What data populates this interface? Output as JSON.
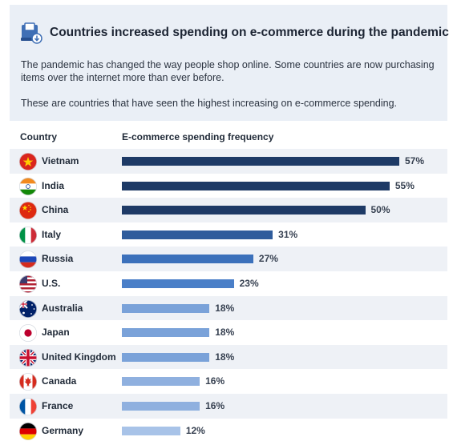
{
  "header": {
    "icon": "shopping-cart-icon",
    "title": "Countries increased spending on e-commerce during the pandemic",
    "description_1": "The pandemic has changed the way people shop online. Some countries are now purchasing items over the internet more than ever before.",
    "description_2": "These are countries that have seen the highest increasing on e-commerce spending."
  },
  "chart_data": {
    "type": "bar",
    "orientation": "horizontal",
    "column_headers": [
      "Country",
      "E-commerce spending frequency"
    ],
    "categories": [
      "Vietnam",
      "India",
      "China",
      "Italy",
      "Russia",
      "U.S.",
      "Australia",
      "Japan",
      "United Kingdom",
      "Canada",
      "France",
      "Germany"
    ],
    "values": [
      57,
      55,
      50,
      31,
      27,
      23,
      18,
      18,
      18,
      16,
      16,
      12
    ],
    "value_labels": [
      "57%",
      "55%",
      "50%",
      "31%",
      "27%",
      "23%",
      "18%",
      "18%",
      "18%",
      "16%",
      "16%",
      "12%"
    ],
    "bar_colors": [
      "#1e3a66",
      "#1e3a66",
      "#1e3a66",
      "#2f5c9c",
      "#3c71bb",
      "#4a7fc8",
      "#7aa2d9",
      "#7aa2d9",
      "#7aa2d9",
      "#8fb0df",
      "#8fb0df",
      "#a8c3e8"
    ],
    "flag_icons": [
      "vietnam-flag-icon",
      "india-flag-icon",
      "china-flag-icon",
      "italy-flag-icon",
      "russia-flag-icon",
      "us-flag-icon",
      "australia-flag-icon",
      "japan-flag-icon",
      "uk-flag-icon",
      "canada-flag-icon",
      "france-flag-icon",
      "germany-flag-icon"
    ],
    "alternating_row_shading": true,
    "grid": false
  }
}
